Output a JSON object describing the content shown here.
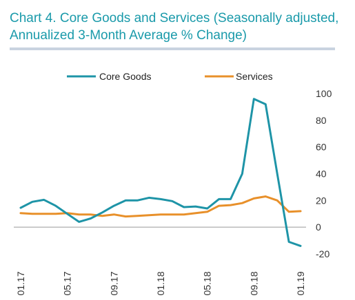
{
  "title": {
    "main": "Chart 4. Core Goods and Services",
    "sub": " (Seasonally adjusted, Annualized 3-Month Average % Change)"
  },
  "colors": {
    "title": "#1a9aaa",
    "core_goods": "#1e94a7",
    "services": "#e8902a",
    "axis": "#999999",
    "rule": "#c9d3e0"
  },
  "chart_data": {
    "type": "line",
    "x": [
      "01.17",
      "02.17",
      "03.17",
      "04.17",
      "05.17",
      "06.17",
      "07.17",
      "08.17",
      "09.17",
      "10.17",
      "11.17",
      "12.17",
      "01.18",
      "02.18",
      "03.18",
      "04.18",
      "05.18",
      "06.18",
      "07.18",
      "08.18",
      "09.18",
      "10.18",
      "11.18",
      "12.18",
      "01.19"
    ],
    "x_tick_labels": [
      "01.17",
      "05.17",
      "09.17",
      "01.18",
      "05.18",
      "09.18",
      "01.19"
    ],
    "series": [
      {
        "name": "Core Goods",
        "values": [
          14.5,
          19,
          20.5,
          16,
          10,
          4,
          6.5,
          11,
          16,
          20,
          20,
          22,
          21,
          19.5,
          15,
          15.5,
          14,
          21,
          21,
          40,
          96,
          92,
          40,
          -11,
          -14
        ]
      },
      {
        "name": "Services",
        "values": [
          10.5,
          10,
          10,
          10,
          10.5,
          9.5,
          9.5,
          8.5,
          9.5,
          8,
          8.5,
          9,
          9.5,
          9.5,
          9.5,
          10.5,
          11.5,
          16,
          16.5,
          18,
          21.5,
          23,
          20,
          11.5,
          12
        ]
      }
    ],
    "y_ticks": [
      100,
      80,
      60,
      40,
      20,
      0,
      -20
    ],
    "ylim": [
      -20,
      100
    ],
    "xlabel": "",
    "ylabel": "",
    "legend": "top",
    "grid": false
  }
}
